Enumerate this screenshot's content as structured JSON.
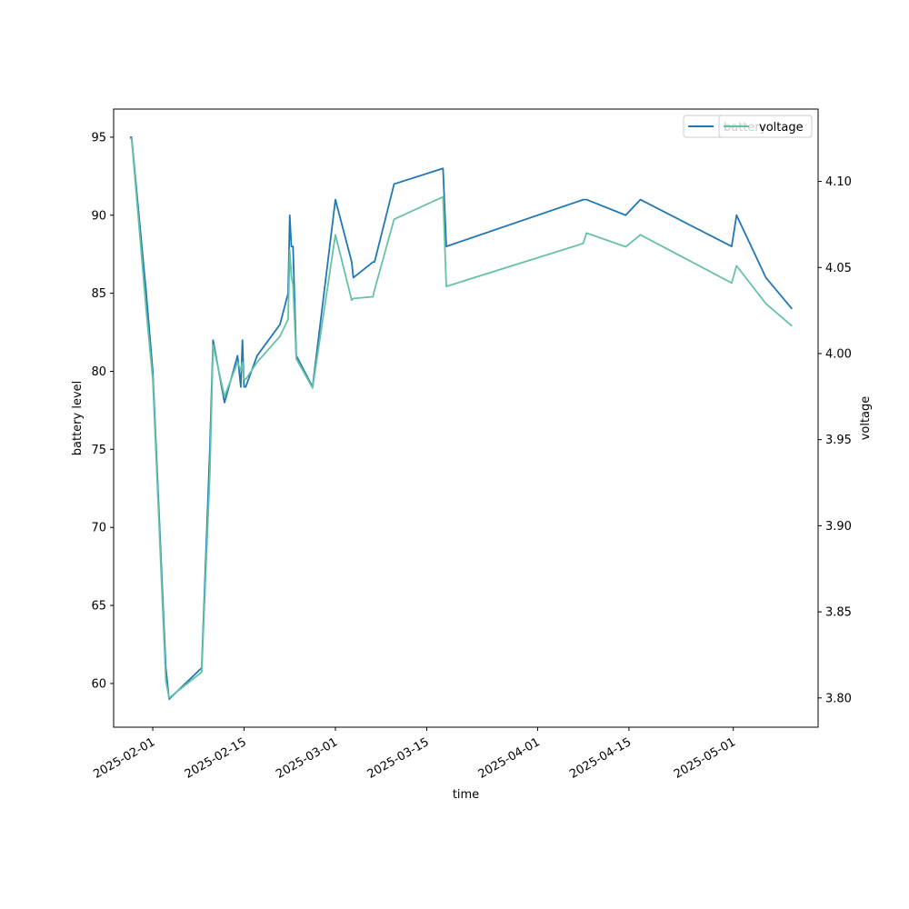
{
  "chart_data": {
    "type": "line",
    "title": "",
    "xlabel": "time",
    "ylabel": "battery level",
    "ylabel_right": "voltage",
    "x_ticks": [
      "2025-02-01",
      "2025-02-15",
      "2025-03-01",
      "2025-03-15",
      "2025-04-01",
      "2025-04-15",
      "2025-05-01"
    ],
    "xlim": [
      "2025-01-26",
      "2025-05-14"
    ],
    "y_ticks": [
      60,
      65,
      70,
      75,
      80,
      85,
      90,
      95
    ],
    "ylim": [
      57.2,
      96.8
    ],
    "y2_ticks": [
      3.8,
      3.85,
      3.9,
      3.95,
      4.0,
      4.05,
      4.1
    ],
    "y2lim": [
      3.783,
      4.142
    ],
    "y2_tick_labels": [
      "3.80",
      "3.85",
      "3.90",
      "3.95",
      "4.00",
      "4.05",
      "4.10"
    ],
    "grid": false,
    "legend_position": "top-right",
    "legends": [
      {
        "label": "battery",
        "color": "#1f77b4",
        "position": "top-right"
      },
      {
        "label": "voltage",
        "color": "#66c2a5",
        "position": "top-right"
      }
    ],
    "series": [
      {
        "name": "battery",
        "axis": "left",
        "color": "#1f77b4",
        "x": [
          "2025-01-28T12:00",
          "2025-01-28T18:00",
          "2025-01-31",
          "2025-02-01",
          "2025-02-03",
          "2025-02-03T12:00",
          "2025-02-08T12:00",
          "2025-02-09T18:00",
          "2025-02-10T06:00",
          "2025-02-12",
          "2025-02-14",
          "2025-02-14T12:00",
          "2025-02-14T18:00",
          "2025-02-15",
          "2025-02-15T06:00",
          "2025-02-17",
          "2025-02-20T12:00",
          "2025-02-21T18:00",
          "2025-02-22",
          "2025-02-22T06:00",
          "2025-02-22T12:00",
          "2025-02-23",
          "2025-02-25T12:00",
          "2025-03-01",
          "2025-03-03T12:00",
          "2025-03-03T18:00",
          "2025-03-06T18:00",
          "2025-03-07",
          "2025-03-10",
          "2025-03-17T12:00",
          "2025-03-18",
          "2025-04-08",
          "2025-04-08T12:00",
          "2025-04-14T12:00",
          "2025-04-16T18:00",
          "2025-04-30T18:00",
          "2025-05-01T12:00",
          "2025-05-06",
          "2025-05-10"
        ],
        "values": [
          95,
          95,
          85,
          80,
          61,
          59,
          61,
          75,
          82,
          78,
          81,
          79,
          82,
          79,
          79,
          81,
          83,
          85,
          90,
          88,
          88,
          81,
          79,
          91,
          87,
          86,
          87,
          87,
          92,
          93,
          88,
          91,
          91,
          90,
          91,
          88,
          90,
          86,
          84
        ]
      },
      {
        "name": "voltage",
        "axis": "right",
        "color": "#66c2a5",
        "x": [
          "2025-01-28T12:00",
          "2025-01-28T18:00",
          "2025-01-31",
          "2025-02-01",
          "2025-02-03",
          "2025-02-03T12:00",
          "2025-02-08T12:00",
          "2025-02-09T18:00",
          "2025-02-10T06:00",
          "2025-02-12",
          "2025-02-14",
          "2025-02-14T12:00",
          "2025-02-14T18:00",
          "2025-02-15",
          "2025-02-15T06:00",
          "2025-02-17",
          "2025-02-20T12:00",
          "2025-02-21T18:00",
          "2025-02-22",
          "2025-02-22T06:00",
          "2025-02-22T12:00",
          "2025-02-23",
          "2025-02-25T12:00",
          "2025-03-01",
          "2025-03-03T12:00",
          "2025-03-03T18:00",
          "2025-03-06T18:00",
          "2025-03-07",
          "2025-03-10",
          "2025-03-17T12:00",
          "2025-03-18",
          "2025-04-08",
          "2025-04-08T12:00",
          "2025-04-14T12:00",
          "2025-04-16T18:00",
          "2025-04-30T18:00",
          "2025-05-01T12:00",
          "2025-05-06",
          "2025-05-10"
        ],
        "values": [
          4.125,
          4.125,
          4.025,
          3.985,
          3.81,
          3.8,
          3.815,
          3.93,
          4.005,
          3.975,
          3.995,
          3.99,
          3.995,
          3.985,
          3.985,
          3.995,
          4.01,
          4.02,
          4.06,
          4.045,
          4.04,
          3.997,
          3.98,
          4.069,
          4.031,
          4.032,
          4.033,
          4.037,
          4.078,
          4.091,
          4.039,
          4.064,
          4.07,
          4.062,
          4.069,
          4.041,
          4.051,
          4.029,
          4.016
        ]
      }
    ]
  }
}
